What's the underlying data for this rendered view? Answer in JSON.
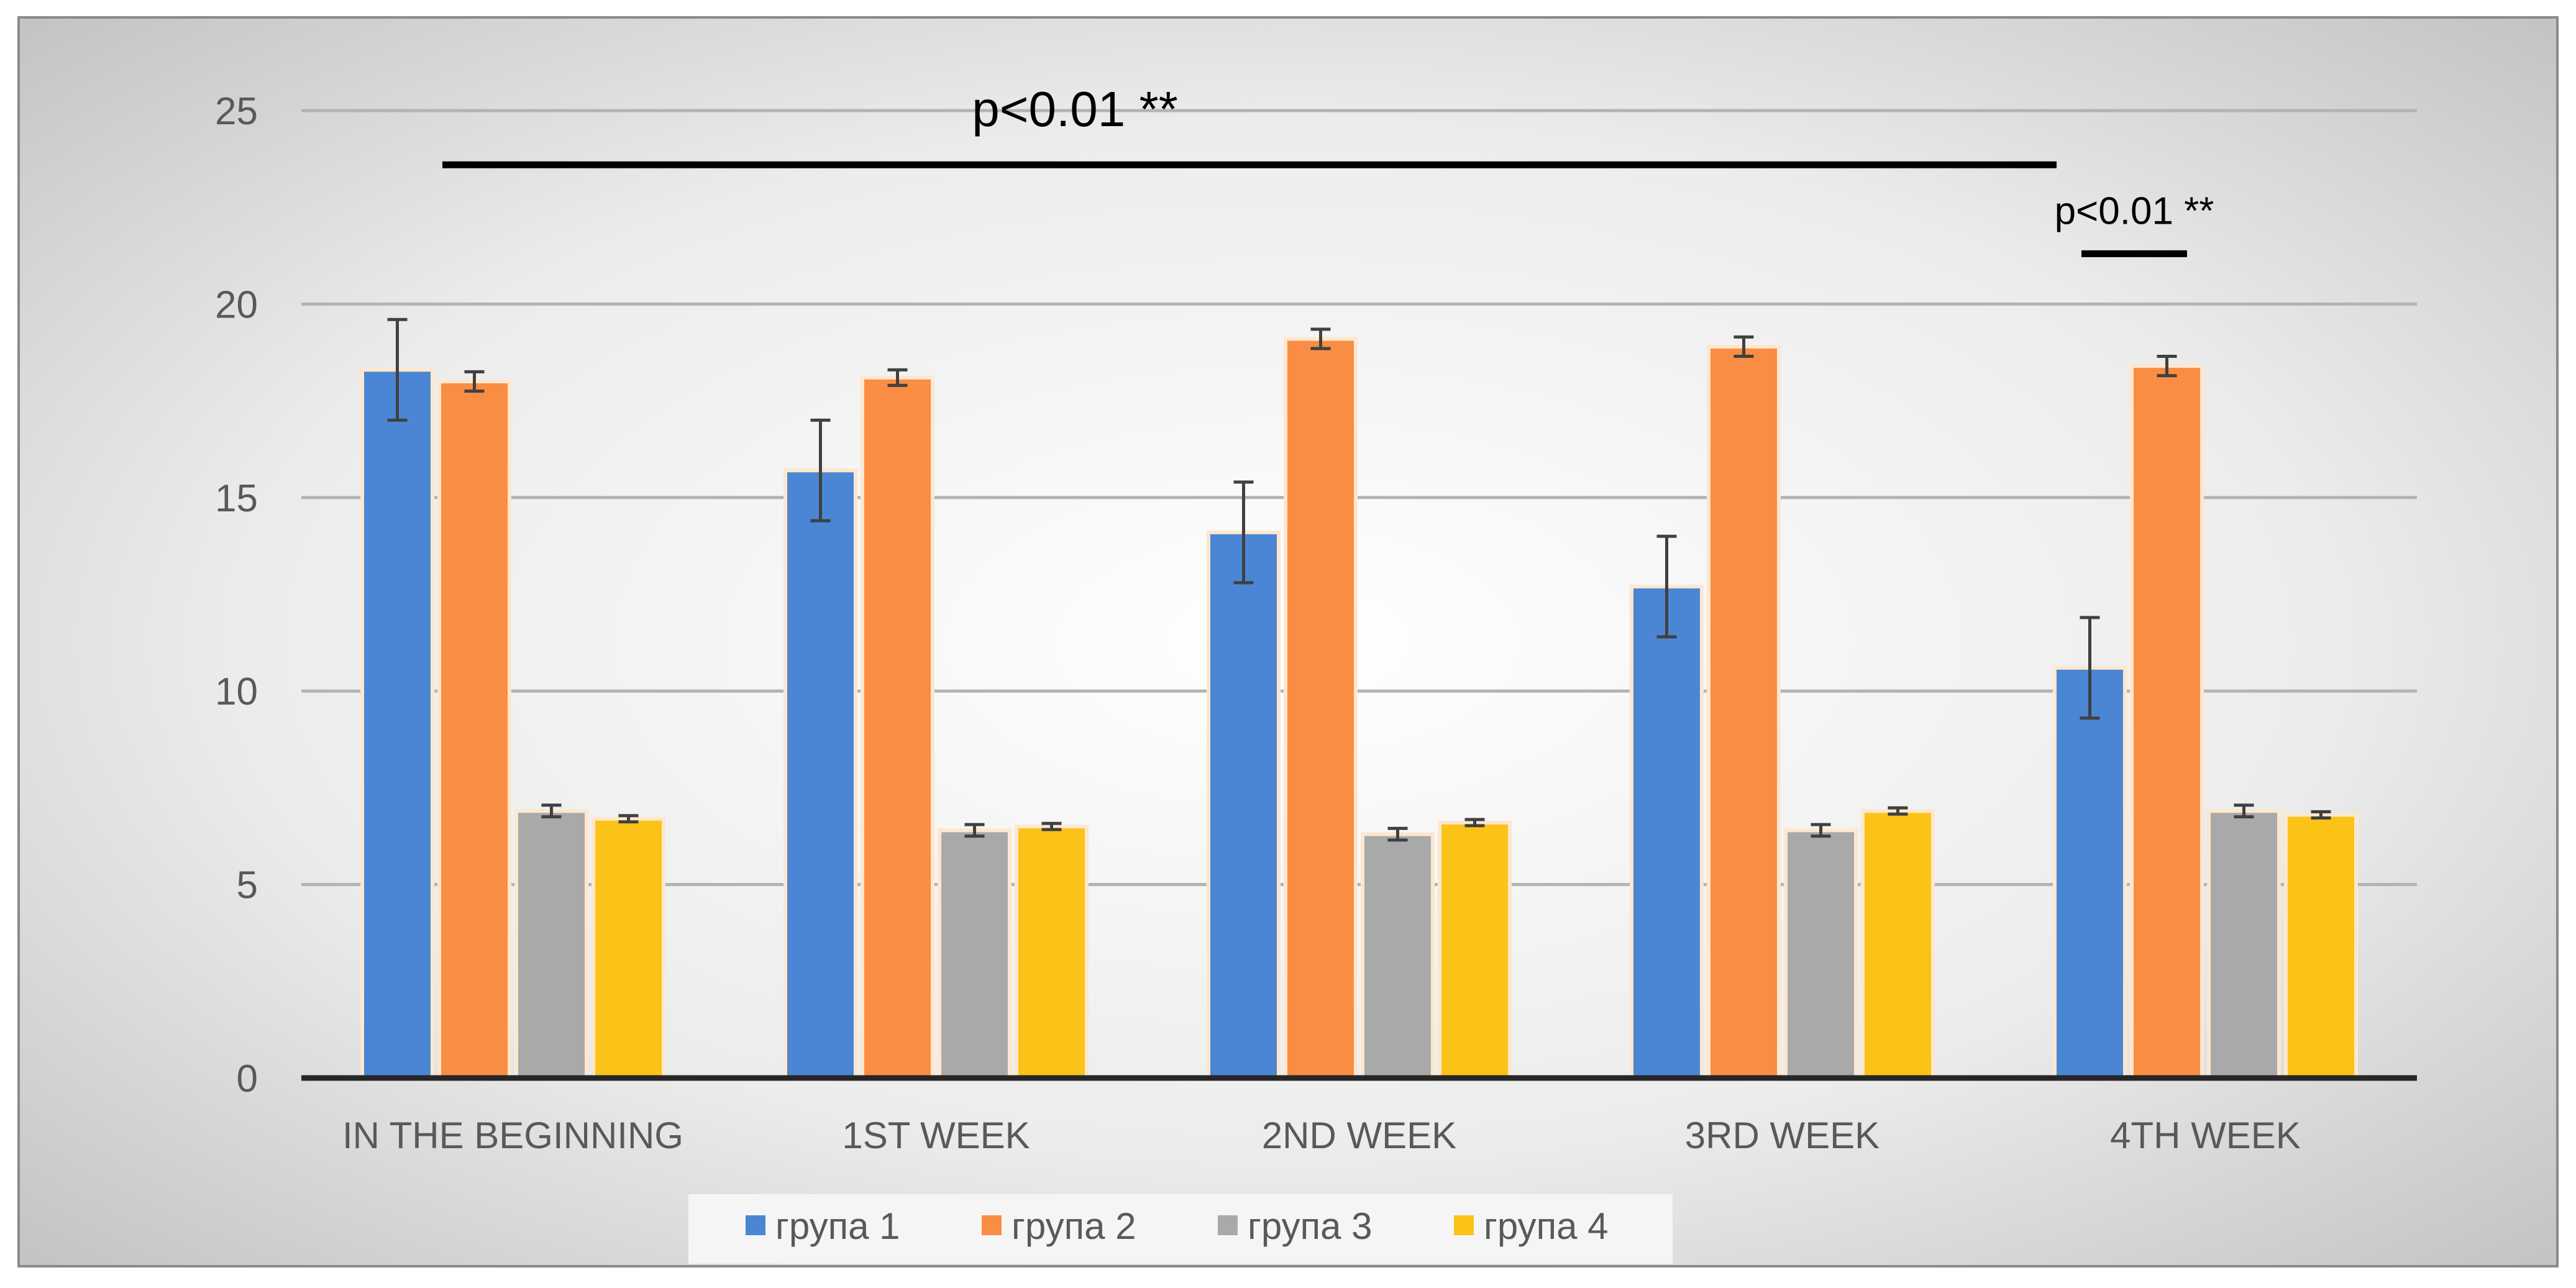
{
  "chart_data": {
    "type": "bar",
    "categories": [
      "IN THE BEGINNING",
      "1ST WEEK",
      "2ND WEEK",
      "3RD WEEK",
      "4TH WEEK"
    ],
    "series": [
      {
        "name": "група 1",
        "color": "#4a86d4",
        "values": [
          18.3,
          15.7,
          14.1,
          12.7,
          10.6
        ],
        "errors": [
          1.3,
          1.3,
          1.3,
          1.3,
          1.3
        ]
      },
      {
        "name": "група 2",
        "color": "#f98d43",
        "values": [
          18.0,
          18.1,
          19.1,
          18.9,
          18.4
        ],
        "errors": [
          0.25,
          0.2,
          0.25,
          0.25,
          0.25
        ]
      },
      {
        "name": "група 3",
        "color": "#a9a9a9",
        "values": [
          6.9,
          6.4,
          6.3,
          6.4,
          6.9
        ],
        "errors": [
          0.15,
          0.15,
          0.15,
          0.15,
          0.15
        ]
      },
      {
        "name": "група 4",
        "color": "#fbc318",
        "values": [
          6.7,
          6.5,
          6.6,
          6.9,
          6.8
        ],
        "errors": [
          0.08,
          0.08,
          0.08,
          0.08,
          0.08
        ]
      }
    ],
    "y_ticks": [
      "0",
      "5",
      "10",
      "15",
      "20",
      "25"
    ],
    "ylim": [
      0,
      25
    ],
    "title": "",
    "xlabel": "",
    "ylabel": "",
    "grid": true,
    "legend_position": "bottom",
    "annotations": [
      {
        "text": "p<0.01 **",
        "y": 23.6,
        "from_category": 0,
        "to_category": 4
      },
      {
        "text": "p<0.01 **",
        "y": 21.3,
        "from_category": 4,
        "to_category": 4
      }
    ]
  }
}
